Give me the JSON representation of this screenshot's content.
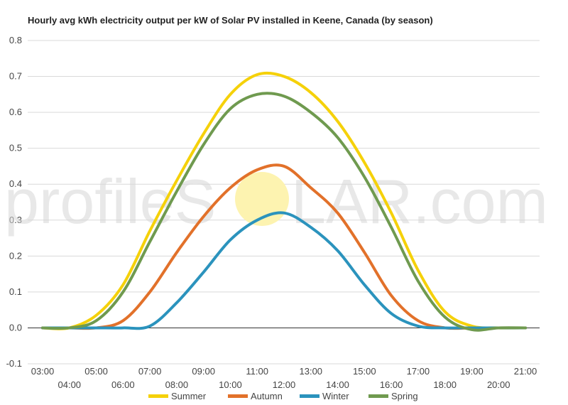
{
  "chart_data": {
    "type": "line",
    "title": "Hourly avg kWh electricity output per kW of Solar PV installed in Keene, Canada (by season)",
    "xlabel": "",
    "ylabel": "",
    "ylim": [
      -0.1,
      0.8
    ],
    "yticks": [
      "0.8",
      "0.7",
      "0.6",
      "0.5",
      "0.4",
      "0.3",
      "0.2",
      "0.1",
      "0.0",
      "-0.1"
    ],
    "x": [
      "03:00",
      "04:00",
      "05:00",
      "06:00",
      "07:00",
      "08:00",
      "09:00",
      "10:00",
      "11:00",
      "12:00",
      "13:00",
      "14:00",
      "15:00",
      "16:00",
      "17:00",
      "18:00",
      "19:00",
      "20:00",
      "21:00"
    ],
    "grid": true,
    "legend_position": "bottom",
    "series": [
      {
        "name": "Summer",
        "color": "#f5d10a",
        "values": [
          0.0,
          0.0,
          0.035,
          0.12,
          0.27,
          0.41,
          0.54,
          0.65,
          0.705,
          0.7,
          0.655,
          0.575,
          0.46,
          0.32,
          0.16,
          0.045,
          0.005,
          0.0,
          0.0
        ]
      },
      {
        "name": "Autumn",
        "color": "#e2712a",
        "values": [
          0.0,
          0.0,
          0.0,
          0.02,
          0.1,
          0.21,
          0.31,
          0.39,
          0.44,
          0.45,
          0.39,
          0.32,
          0.21,
          0.09,
          0.02,
          0.0,
          0.0,
          0.0,
          0.0
        ]
      },
      {
        "name": "Winter",
        "color": "#2b93bd",
        "values": [
          0.0,
          0.0,
          0.0,
          0.0,
          0.005,
          0.07,
          0.155,
          0.245,
          0.3,
          0.32,
          0.28,
          0.215,
          0.12,
          0.04,
          0.005,
          0.0,
          0.0,
          0.0,
          0.0
        ]
      },
      {
        "name": "Spring",
        "color": "#6f9a4f",
        "values": [
          0.0,
          0.0,
          0.02,
          0.1,
          0.24,
          0.38,
          0.51,
          0.61,
          0.65,
          0.645,
          0.6,
          0.53,
          0.42,
          0.28,
          0.13,
          0.03,
          -0.005,
          0.0,
          0.0
        ]
      }
    ]
  },
  "watermark": {
    "left": "profileS",
    "right": "LAR.com",
    "sun_color": "#fdf3b0"
  }
}
